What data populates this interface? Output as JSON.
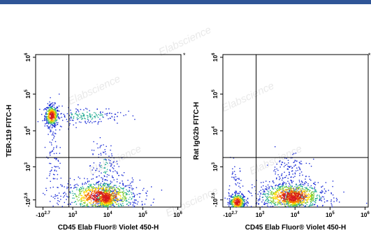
{
  "header": {
    "bar_color": "#2f5597"
  },
  "watermark": "Elabscience",
  "chart_data": [
    {
      "type": "scatter",
      "xlabel": "CD45 Elab Fluor® Violet 450-H",
      "ylabel": "TER-119 FITC-H",
      "x_ticks": [
        {
          "base": "-10",
          "exp": "2.7"
        },
        {
          "base": "10",
          "exp": "3"
        },
        {
          "base": "10",
          "exp": "4"
        },
        {
          "base": "10",
          "exp": "5"
        },
        {
          "base": "10",
          "exp": "6"
        }
      ],
      "y_ticks": [
        {
          "base": "-10",
          "exp": "2.6"
        },
        {
          "base": "10",
          "exp": "3"
        },
        {
          "base": "10",
          "exp": "4"
        },
        {
          "base": "10",
          "exp": "5"
        },
        {
          "base": "10",
          "exp": "6"
        }
      ],
      "gate": {
        "x": 2.8,
        "y": 3.2
      },
      "corner_mark": "*",
      "populations": [
        {
          "cx": 2.3,
          "cy": 4.35,
          "sx": 0.1,
          "sy": 0.15,
          "n": 420
        },
        {
          "cx": 3.7,
          "cy": 2.15,
          "sx": 0.55,
          "sy": 0.22,
          "n": 900
        },
        {
          "cx": 3.85,
          "cy": 2.1,
          "sx": 0.15,
          "sy": 0.15,
          "n": 500
        },
        {
          "cx": 3.3,
          "cy": 4.35,
          "sx": 0.5,
          "sy": 0.12,
          "n": 160
        },
        {
          "cx": 2.35,
          "cy": 3.3,
          "sx": 0.1,
          "sy": 0.6,
          "n": 90
        },
        {
          "cx": 3.8,
          "cy": 2.95,
          "sx": 0.2,
          "sy": 0.35,
          "n": 120
        }
      ]
    },
    {
      "type": "scatter",
      "xlabel": "CD45 Elab Fluor® Violet 450-H",
      "ylabel": "Rat IgG2b FITC-H",
      "x_ticks": [
        {
          "base": "-10",
          "exp": "2.7"
        },
        {
          "base": "10",
          "exp": "3"
        },
        {
          "base": "10",
          "exp": "4"
        },
        {
          "base": "10",
          "exp": "5"
        },
        {
          "base": "10",
          "exp": "6"
        }
      ],
      "y_ticks": [
        {
          "base": "-10",
          "exp": "2.6"
        },
        {
          "base": "10",
          "exp": "3"
        },
        {
          "base": "10",
          "exp": "4"
        },
        {
          "base": "10",
          "exp": "5"
        },
        {
          "base": "10",
          "exp": "6"
        }
      ],
      "gate": {
        "x": 2.8,
        "y": 3.2
      },
      "corner_mark": "*",
      "populations": [
        {
          "cx": 2.25,
          "cy": 2.0,
          "sx": 0.12,
          "sy": 0.12,
          "n": 420
        },
        {
          "cx": 3.8,
          "cy": 2.15,
          "sx": 0.5,
          "sy": 0.2,
          "n": 950
        },
        {
          "cx": 3.85,
          "cy": 2.1,
          "sx": 0.15,
          "sy": 0.14,
          "n": 450
        },
        {
          "cx": 3.7,
          "cy": 2.9,
          "sx": 0.3,
          "sy": 0.2,
          "n": 100
        },
        {
          "cx": 2.2,
          "cy": 2.5,
          "sx": 0.1,
          "sy": 0.25,
          "n": 40
        }
      ]
    }
  ]
}
